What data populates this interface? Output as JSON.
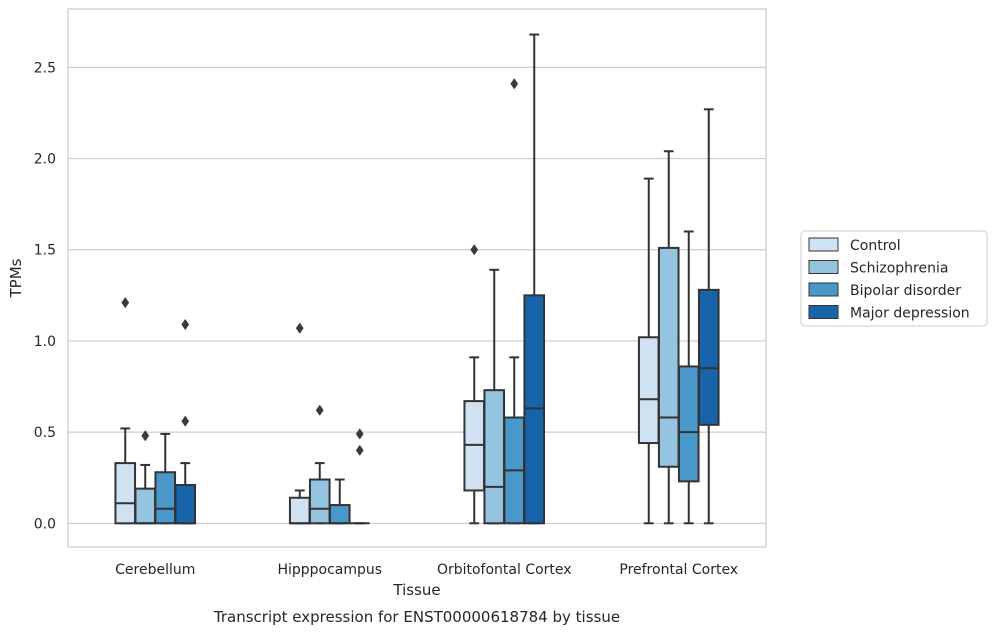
{
  "chart_data": {
    "type": "box",
    "xlabel": "Tissue",
    "ylabel": "TPMs",
    "caption": "Transcript expression for ENST00000618784 by tissue",
    "ylim": [
      -0.13,
      2.82
    ],
    "yticks": [
      0.0,
      0.5,
      1.0,
      1.5,
      2.0,
      2.5
    ],
    "ytick_labels": [
      "0.0",
      "0.5",
      "1.0",
      "1.5",
      "2.0",
      "2.5"
    ],
    "grid": "horizontal",
    "legend_position": "right",
    "categories": [
      "Cerebellum",
      "Hipppocampus",
      "Orbitofontal Cortex",
      "Prefrontal Cortex"
    ],
    "series": [
      {
        "name": "Control",
        "color": "#d0e1f2",
        "boxes": [
          {
            "whisker_low": 0.0,
            "q1": 0.0,
            "median": 0.11,
            "q3": 0.33,
            "whisker_high": 0.52,
            "outliers": [
              1.21
            ]
          },
          {
            "whisker_low": 0.0,
            "q1": 0.0,
            "median": 0.0,
            "q3": 0.14,
            "whisker_high": 0.18,
            "outliers": [
              1.07
            ]
          },
          {
            "whisker_low": 0.0,
            "q1": 0.18,
            "median": 0.43,
            "q3": 0.67,
            "whisker_high": 0.91,
            "outliers": [
              1.5
            ]
          },
          {
            "whisker_low": 0.0,
            "q1": 0.44,
            "median": 0.68,
            "q3": 1.02,
            "whisker_high": 1.89,
            "outliers": []
          }
        ]
      },
      {
        "name": "Schizophrenia",
        "color": "#94c4df",
        "boxes": [
          {
            "whisker_low": 0.0,
            "q1": 0.0,
            "median": 0.0,
            "q3": 0.19,
            "whisker_high": 0.32,
            "outliers": [
              0.48
            ]
          },
          {
            "whisker_low": 0.0,
            "q1": 0.0,
            "median": 0.08,
            "q3": 0.24,
            "whisker_high": 0.33,
            "outliers": [
              0.62
            ]
          },
          {
            "whisker_low": 0.0,
            "q1": 0.0,
            "median": 0.2,
            "q3": 0.73,
            "whisker_high": 1.39,
            "outliers": []
          },
          {
            "whisker_low": 0.0,
            "q1": 0.31,
            "median": 0.58,
            "q3": 1.51,
            "whisker_high": 2.04,
            "outliers": []
          }
        ]
      },
      {
        "name": "Bipolar disorder",
        "color": "#4a98c9",
        "boxes": [
          {
            "whisker_low": 0.0,
            "q1": 0.0,
            "median": 0.08,
            "q3": 0.28,
            "whisker_high": 0.49,
            "outliers": []
          },
          {
            "whisker_low": 0.0,
            "q1": 0.0,
            "median": 0.0,
            "q3": 0.1,
            "whisker_high": 0.24,
            "outliers": []
          },
          {
            "whisker_low": 0.0,
            "q1": 0.0,
            "median": 0.29,
            "q3": 0.58,
            "whisker_high": 0.91,
            "outliers": [
              2.41
            ]
          },
          {
            "whisker_low": 0.0,
            "q1": 0.23,
            "median": 0.5,
            "q3": 0.86,
            "whisker_high": 1.6,
            "outliers": []
          }
        ]
      },
      {
        "name": "Major depression",
        "color": "#1764ab",
        "boxes": [
          {
            "whisker_low": 0.0,
            "q1": 0.0,
            "median": 0.0,
            "q3": 0.21,
            "whisker_high": 0.33,
            "outliers": [
              0.56,
              1.09
            ]
          },
          {
            "whisker_low": 0.0,
            "q1": 0.0,
            "median": 0.0,
            "q3": 0.0,
            "whisker_high": 0.0,
            "outliers": [
              0.4,
              0.49
            ]
          },
          {
            "whisker_low": 0.0,
            "q1": 0.0,
            "median": 0.63,
            "q3": 1.25,
            "whisker_high": 2.68,
            "outliers": []
          },
          {
            "whisker_low": 0.0,
            "q1": 0.54,
            "median": 0.85,
            "q3": 1.28,
            "whisker_high": 2.27,
            "outliers": []
          }
        ]
      }
    ]
  },
  "style": {
    "grid_color": "#cccccc",
    "frame_color": "#cccccc",
    "box_edge_color": "#333333",
    "legend_edge_color": "#cccccc"
  }
}
